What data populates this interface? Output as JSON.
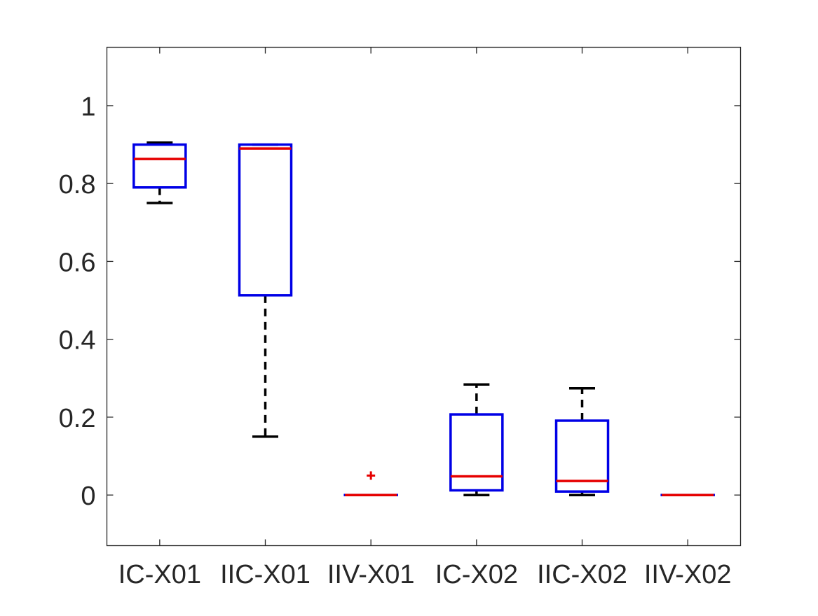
{
  "chart_data": {
    "type": "box",
    "title": "",
    "xlabel": "",
    "ylabel": "",
    "ylim": [
      -0.13,
      1.15
    ],
    "yticks": [
      0,
      0.2,
      0.4,
      0.6,
      0.8,
      1
    ],
    "ytick_labels": [
      "0",
      "0.2",
      "0.4",
      "0.6",
      "0.8",
      "1"
    ],
    "grid": false,
    "categories": [
      "IC-X01",
      "IIC-X01",
      "IIV-X01",
      "IC-X02",
      "IIC-X02",
      "IIV-X02"
    ],
    "boxes": [
      {
        "category": "IC-X01",
        "whisker_low": 0.75,
        "q1": 0.79,
        "median": 0.863,
        "q3": 0.9,
        "whisker_high": 0.905,
        "outliers": []
      },
      {
        "category": "IIC-X01",
        "whisker_low": 0.15,
        "q1": 0.513,
        "median": 0.89,
        "q3": 0.9,
        "whisker_high": 0.9,
        "outliers": []
      },
      {
        "category": "IIV-X01",
        "whisker_low": 0.0,
        "q1": 0.0,
        "median": 0.0,
        "q3": 0.0,
        "whisker_high": 0.0,
        "outliers": [
          0.05
        ]
      },
      {
        "category": "IC-X02",
        "whisker_low": 0.0,
        "q1": 0.012,
        "median": 0.048,
        "q3": 0.207,
        "whisker_high": 0.284,
        "outliers": []
      },
      {
        "category": "IIC-X02",
        "whisker_low": 0.0,
        "q1": 0.009,
        "median": 0.036,
        "q3": 0.191,
        "whisker_high": 0.274,
        "outliers": []
      },
      {
        "category": "IIV-X02",
        "whisker_low": 0.0,
        "q1": 0.0,
        "median": 0.0,
        "q3": 0.0,
        "whisker_high": 0.0,
        "outliers": []
      }
    ],
    "colors": {
      "box": "#0000e6",
      "median": "#e60000",
      "whisker": "#000000",
      "outlier": "#e60000",
      "axes": "#262626"
    }
  }
}
